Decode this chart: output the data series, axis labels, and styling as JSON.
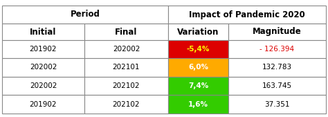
{
  "col_headers_row1": [
    "Period",
    "Impact of Pandemic 2020"
  ],
  "col_headers_row2": [
    "Initial",
    "Final",
    "Variation",
    "Magnitude"
  ],
  "rows": [
    [
      "201902",
      "202002",
      "-5,4%",
      "- 126.394"
    ],
    [
      "202002",
      "202101",
      "6,0%",
      "132.783"
    ],
    [
      "202002",
      "202102",
      "7,4%",
      "163.745"
    ],
    [
      "201902",
      "202102",
      "1,6%",
      "37.351"
    ]
  ],
  "variation_colors": [
    "#dd0000",
    "#ffaa00",
    "#33cc00",
    "#33cc00"
  ],
  "variation_text_colors": [
    "#ffff00",
    "#ffffff",
    "#ffffff",
    "#ffffff"
  ],
  "magnitude_text_colors": [
    "#dd0000",
    "#000000",
    "#000000",
    "#000000"
  ],
  "border_color": "#888888",
  "font_size": 7.5,
  "header_font_size": 8.5
}
